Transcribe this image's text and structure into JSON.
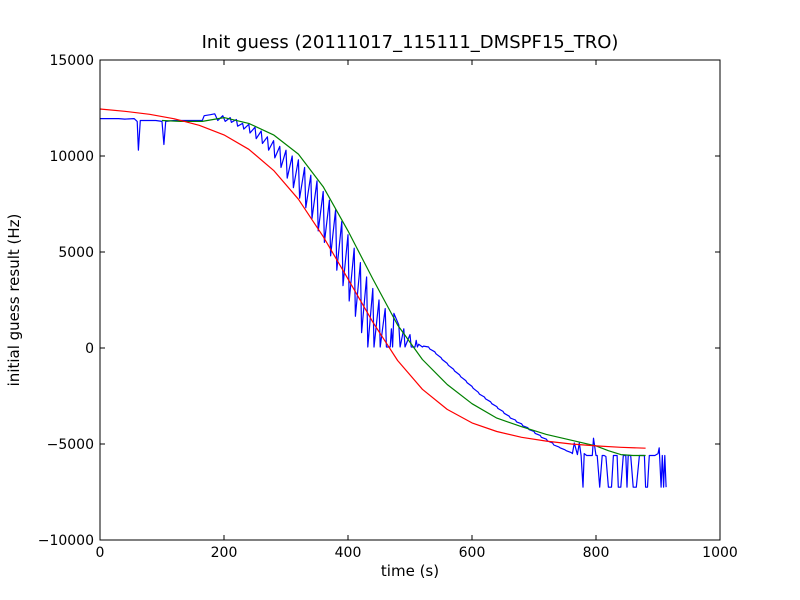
{
  "chart_data": {
    "type": "line",
    "title": "Init guess (20111017_115111_DMSPF15_TRO)",
    "xlabel": "time (s)",
    "ylabel": "initial guess result (Hz)",
    "xlim": [
      0,
      1000
    ],
    "ylim": [
      -10000,
      15000
    ],
    "xticks": [
      0,
      200,
      400,
      600,
      800,
      1000
    ],
    "yticks": [
      -10000,
      -5000,
      0,
      5000,
      10000,
      15000
    ],
    "xtick_labels": [
      "0",
      "200",
      "400",
      "600",
      "800",
      "1000"
    ],
    "ytick_labels": [
      "−10000",
      "−5000",
      "0",
      "5000",
      "10000",
      "15000"
    ],
    "grid": false,
    "legend": "none",
    "series": [
      {
        "color": "#0000ff",
        "x": [
          0,
          30,
          40,
          55,
          60,
          62,
          65,
          90,
          100,
          103,
          106,
          120,
          165,
          168,
          178,
          185,
          190,
          198,
          202,
          210,
          212,
          220,
          222,
          230,
          232,
          240,
          242,
          250,
          252,
          260,
          262,
          270,
          272,
          280,
          282,
          290,
          292,
          300,
          302,
          310,
          312,
          320,
          322,
          330,
          332,
          340,
          342,
          350,
          352,
          360,
          362,
          370,
          372,
          380,
          382,
          390,
          392,
          400,
          402,
          410,
          412,
          420,
          422,
          430,
          432,
          440,
          442,
          450,
          452,
          460,
          462,
          468,
          470,
          472,
          474,
          482,
          484,
          490,
          492,
          500,
          502,
          508,
          510,
          512,
          514,
          520,
          522,
          530,
          532,
          540,
          542,
          550,
          552,
          560,
          562,
          570,
          572,
          580,
          582,
          590,
          592,
          600,
          602,
          610,
          612,
          620,
          622,
          630,
          632,
          640,
          642,
          650,
          652,
          660,
          662,
          670,
          672,
          680,
          682,
          690,
          692,
          700,
          702,
          710,
          712,
          720,
          722,
          730,
          732,
          740,
          742,
          750,
          752,
          760,
          762,
          765,
          770,
          773,
          776,
          779,
          781,
          785,
          790,
          794,
          796,
          800,
          802,
          806,
          810,
          813,
          816,
          820,
          825,
          828,
          834,
          836,
          840,
          844,
          848,
          850,
          852,
          856,
          860,
          865,
          870,
          875,
          878,
          880,
          883,
          886,
          890,
          895,
          900,
          902,
          905,
          907,
          909,
          911,
          913
        ],
        "y": [
          11950,
          11950,
          11920,
          11950,
          11800,
          10300,
          11850,
          11850,
          11800,
          10600,
          11800,
          11850,
          11850,
          12100,
          12150,
          12200,
          11850,
          12100,
          11800,
          12000,
          11750,
          11900,
          11550,
          11700,
          11400,
          11650,
          11200,
          11500,
          10900,
          11300,
          10650,
          11000,
          10300,
          10800,
          9900,
          10500,
          9400,
          10300,
          8850,
          10000,
          8350,
          9800,
          7800,
          9400,
          7300,
          9000,
          6750,
          8700,
          6100,
          8150,
          5500,
          7700,
          4800,
          7200,
          4050,
          6600,
          3250,
          5900,
          2450,
          5200,
          1650,
          4450,
          800,
          3700,
          50,
          3100,
          50,
          2500,
          50,
          2050,
          50,
          50,
          1000,
          50,
          1800,
          1200,
          50,
          1000,
          50,
          700,
          50,
          50,
          400,
          50,
          200,
          50,
          100,
          50,
          -50,
          -200,
          -300,
          -500,
          -600,
          -800,
          -900,
          -1100,
          -1200,
          -1400,
          -1500,
          -1700,
          -1800,
          -2000,
          -2100,
          -2300,
          -2400,
          -2550,
          -2650,
          -2800,
          -2900,
          -3050,
          -3150,
          -3300,
          -3400,
          -3550,
          -3650,
          -3750,
          -3850,
          -3950,
          -4050,
          -4150,
          -4250,
          -4350,
          -4450,
          -4550,
          -4650,
          -4750,
          -4850,
          -4950,
          -5050,
          -5150,
          -5200,
          -5300,
          -5350,
          -5450,
          -5500,
          -4950,
          -5550,
          -4950,
          -5600,
          -7250,
          -5500,
          -5600,
          -5600,
          -5600,
          -4700,
          -5600,
          -5600,
          -7250,
          -5600,
          -5600,
          -5650,
          -7250,
          -7250,
          -5600,
          -5600,
          -7250,
          -7250,
          -5600,
          -5600,
          -7250,
          -5600,
          -5600,
          -7250,
          -7250,
          -5600,
          -5600,
          -5600,
          -7250,
          -7250,
          -5600,
          -5600,
          -5600,
          -5500,
          -5200,
          -7250,
          -5600,
          -7250,
          -5600,
          -7250
        ]
      },
      {
        "color": "#008000",
        "x": [
          100,
          130,
          165,
          200,
          240,
          280,
          320,
          360,
          400,
          440,
          480,
          520,
          560,
          600,
          640,
          680,
          720,
          760,
          800,
          820,
          840,
          860,
          880
        ],
        "y": [
          11850,
          11800,
          11800,
          12000,
          11700,
          11100,
          10100,
          8400,
          6100,
          3600,
          1200,
          -600,
          -1900,
          -2900,
          -3650,
          -4100,
          -4500,
          -4800,
          -5100,
          -5350,
          -5550,
          -5600,
          -5600
        ]
      },
      {
        "color": "#ff0000",
        "x": [
          0,
          40,
          80,
          120,
          160,
          200,
          240,
          280,
          320,
          360,
          400,
          440,
          480,
          520,
          560,
          600,
          640,
          680,
          720,
          760,
          800,
          840,
          880
        ],
        "y": [
          12450,
          12330,
          12170,
          11940,
          11600,
          11100,
          10350,
          9250,
          7750,
          5800,
          3600,
          1350,
          -650,
          -2150,
          -3200,
          -3900,
          -4350,
          -4650,
          -4850,
          -5000,
          -5100,
          -5170,
          -5220
        ]
      }
    ]
  }
}
